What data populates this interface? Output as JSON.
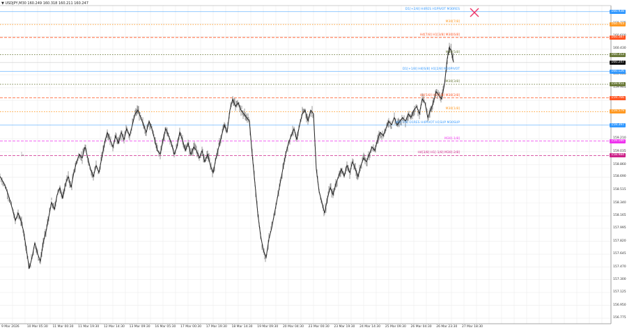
{
  "header": {
    "symbol_ohlc": "USDJPY,M30  160.249 160.318 160.211 160.247"
  },
  "chart_data": {
    "type": "line",
    "title": "USDJPY,M30",
    "ohlc_last": {
      "open": 160.249,
      "high": 160.318,
      "low": 160.211,
      "close": 160.247
    },
    "x_tick_labels": [
      "9 Mar 2026",
      "10 Mar 05:30",
      "11 Mar 00:30",
      "11 Mar 19:30",
      "12 Mar 14:30",
      "13 Mar 09:30",
      "16 Mar 05:30",
      "17 Mar 00:30",
      "17 Mar 19:30",
      "18 Mar 14:30",
      "19 Mar 09:30",
      "20 Mar 04:30",
      "23 Mar 00:30",
      "23 Mar 19:30",
      "24 Mar 14:30",
      "25 Mar 09:30",
      "26 Mar 04:30",
      "26 Mar 23:30",
      "27 Mar 18:30"
    ],
    "y_tick_labels": [
      "160.775",
      "160.600",
      "160.430",
      "160.080",
      "159.905",
      "159.733",
      "159.210",
      "159.035",
      "158.860",
      "158.690",
      "158.515",
      "158.340",
      "158.165",
      "157.995",
      "157.820",
      "157.645",
      "157.470",
      "157.300",
      "157.125",
      "156.950",
      "156.775"
    ],
    "ylim": [
      156.7,
      161.02
    ],
    "grid": true,
    "price_path": [
      [
        0,
        158.7
      ],
      [
        6,
        158.6
      ],
      [
        12,
        158.45
      ],
      [
        18,
        158.25
      ],
      [
        22,
        158.1
      ],
      [
        26,
        158.2
      ],
      [
        30,
        158.1
      ],
      [
        34,
        157.95
      ],
      [
        38,
        157.7
      ],
      [
        42,
        157.45
      ],
      [
        46,
        157.6
      ],
      [
        50,
        157.8
      ],
      [
        54,
        157.65
      ],
      [
        58,
        157.55
      ],
      [
        62,
        157.8
      ],
      [
        66,
        157.95
      ],
      [
        70,
        158.15
      ],
      [
        74,
        158.35
      ],
      [
        78,
        158.25
      ],
      [
        82,
        158.45
      ],
      [
        86,
        158.55
      ],
      [
        90,
        158.4
      ],
      [
        94,
        158.6
      ],
      [
        98,
        158.7
      ],
      [
        102,
        158.55
      ],
      [
        106,
        158.75
      ],
      [
        110,
        158.9
      ],
      [
        114,
        159.0
      ],
      [
        118,
        158.95
      ],
      [
        122,
        159.1
      ],
      [
        126,
        158.95
      ],
      [
        130,
        158.8
      ],
      [
        134,
        158.7
      ],
      [
        138,
        158.85
      ],
      [
        142,
        158.75
      ],
      [
        146,
        158.95
      ],
      [
        150,
        159.15
      ],
      [
        154,
        159.3
      ],
      [
        158,
        159.2
      ],
      [
        162,
        159.1
      ],
      [
        166,
        159.25
      ],
      [
        170,
        159.15
      ],
      [
        174,
        159.3
      ],
      [
        178,
        159.2
      ],
      [
        182,
        159.35
      ],
      [
        186,
        159.25
      ],
      [
        190,
        159.4
      ],
      [
        194,
        159.55
      ],
      [
        198,
        159.6
      ],
      [
        202,
        159.5
      ],
      [
        206,
        159.4
      ],
      [
        210,
        159.3
      ],
      [
        214,
        159.45
      ],
      [
        218,
        159.35
      ],
      [
        222,
        159.2
      ],
      [
        226,
        159.05
      ],
      [
        230,
        159.0
      ],
      [
        234,
        159.2
      ],
      [
        238,
        159.35
      ],
      [
        242,
        159.25
      ],
      [
        246,
        159.15
      ],
      [
        250,
        159.0
      ],
      [
        254,
        159.1
      ],
      [
        258,
        159.3
      ],
      [
        262,
        159.2
      ],
      [
        266,
        159.05
      ],
      [
        270,
        159.15
      ],
      [
        274,
        159.0
      ],
      [
        278,
        159.1
      ],
      [
        282,
        159.05
      ],
      [
        286,
        158.95
      ],
      [
        290,
        159.05
      ],
      [
        294,
        158.9
      ],
      [
        298,
        159.0
      ],
      [
        302,
        158.85
      ],
      [
        306,
        158.75
      ],
      [
        310,
        158.95
      ],
      [
        314,
        159.1
      ],
      [
        318,
        159.25
      ],
      [
        322,
        159.4
      ],
      [
        326,
        159.3
      ],
      [
        330,
        159.6
      ],
      [
        334,
        159.75
      ],
      [
        338,
        159.65
      ],
      [
        342,
        159.7
      ],
      [
        346,
        159.6
      ],
      [
        350,
        159.55
      ],
      [
        354,
        159.5
      ],
      [
        358,
        159.45
      ],
      [
        362,
        159.0
      ],
      [
        366,
        158.6
      ],
      [
        370,
        158.2
      ],
      [
        374,
        157.9
      ],
      [
        378,
        157.7
      ],
      [
        382,
        157.6
      ],
      [
        386,
        157.85
      ],
      [
        390,
        158.0
      ],
      [
        394,
        158.2
      ],
      [
        398,
        158.4
      ],
      [
        402,
        158.6
      ],
      [
        406,
        158.8
      ],
      [
        410,
        159.0
      ],
      [
        414,
        159.15
      ],
      [
        418,
        159.25
      ],
      [
        422,
        159.35
      ],
      [
        426,
        159.2
      ],
      [
        430,
        159.4
      ],
      [
        434,
        159.55
      ],
      [
        438,
        159.6
      ],
      [
        442,
        159.45
      ],
      [
        446,
        159.6
      ],
      [
        450,
        159.55
      ],
      [
        454,
        158.8
      ],
      [
        458,
        158.5
      ],
      [
        462,
        158.35
      ],
      [
        466,
        158.2
      ],
      [
        470,
        158.4
      ],
      [
        474,
        158.55
      ],
      [
        478,
        158.45
      ],
      [
        482,
        158.6
      ],
      [
        486,
        158.7
      ],
      [
        490,
        158.8
      ],
      [
        494,
        158.7
      ],
      [
        498,
        158.85
      ],
      [
        502,
        158.75
      ],
      [
        506,
        158.9
      ],
      [
        510,
        158.8
      ],
      [
        514,
        158.7
      ],
      [
        518,
        158.85
      ],
      [
        522,
        158.95
      ],
      [
        526,
        158.9
      ],
      [
        530,
        159.0
      ],
      [
        534,
        159.1
      ],
      [
        538,
        159.05
      ],
      [
        542,
        159.2
      ],
      [
        546,
        159.3
      ],
      [
        550,
        159.25
      ],
      [
        554,
        159.35
      ],
      [
        558,
        159.45
      ],
      [
        562,
        159.4
      ],
      [
        566,
        159.5
      ],
      [
        570,
        159.4
      ],
      [
        574,
        159.45
      ],
      [
        578,
        159.5
      ],
      [
        582,
        159.45
      ],
      [
        586,
        159.55
      ],
      [
        590,
        159.5
      ],
      [
        594,
        159.6
      ],
      [
        598,
        159.65
      ],
      [
        602,
        159.55
      ],
      [
        606,
        159.75
      ],
      [
        610,
        159.7
      ],
      [
        614,
        159.5
      ],
      [
        618,
        159.6
      ],
      [
        622,
        159.7
      ],
      [
        626,
        159.85
      ],
      [
        630,
        159.8
      ],
      [
        634,
        159.75
      ],
      [
        638,
        159.95
      ],
      [
        642,
        160.3
      ],
      [
        645,
        160.45
      ],
      [
        648,
        160.4
      ],
      [
        651,
        160.25
      ]
    ],
    "levels": [
      {
        "label": "D1[+2/8] H4RES H1PIVOT M30RES",
        "price": 160.938,
        "tag": "160.938",
        "color": "#3399ff",
        "style": "solid"
      },
      {
        "label": "M30[7/8]",
        "price": 160.763,
        "tag": "160.763",
        "color": "#ff9922",
        "style": "dotted"
      },
      {
        "label": "H4[7/8] H1[3/8] M30[6/8]",
        "price": 160.587,
        "tag": "160.587",
        "color": "#ff5522",
        "style": "dashed"
      },
      {
        "label": "M30[5/8]",
        "price": 160.353,
        "tag": "160.353",
        "color": "#6b7a3a",
        "style": "dotted"
      },
      {
        "label": "D1[+1/8] H4[6/8] H1[2/8] M30PIVOT",
        "price": 160.126,
        "tag": "160.126",
        "color": "#3399ff",
        "style": "solid"
      },
      {
        "label": "M30[3/8]",
        "price": 159.951,
        "tag": "159.951",
        "color": "#6b7a3a",
        "style": "dotted"
      },
      {
        "label": "H4[5/8] H1[1/8] M30[2/8]",
        "price": 159.766,
        "tag": "159.766",
        "color": "#ff5522",
        "style": "dashed"
      },
      {
        "label": "M30[1/8]",
        "price": 159.579,
        "tag": "159.579",
        "color": "#ff9922",
        "style": "dotted"
      },
      {
        "label": "W1[7/8] D1RES H4PIVOT H1SUP M30SUP",
        "price": 159.397,
        "tag": "159.397",
        "color": "#3399ff",
        "style": "solid"
      },
      {
        "label": "M30[-1/8]",
        "price": 159.18,
        "tag": "159.180",
        "color": "#ee33ee",
        "style": "dashed"
      },
      {
        "label": "H4[3/8] H1[-1/8] M30[-2/8]",
        "price": 158.984,
        "tag": "158.984",
        "color": "#cc2288",
        "style": "dashed"
      }
    ],
    "current_price_tag": {
      "price": 160.247,
      "tag": "160.247",
      "color": "#111111"
    },
    "marker": {
      "type": "x",
      "color": "#ee3366",
      "x": 681,
      "y": 18
    }
  }
}
